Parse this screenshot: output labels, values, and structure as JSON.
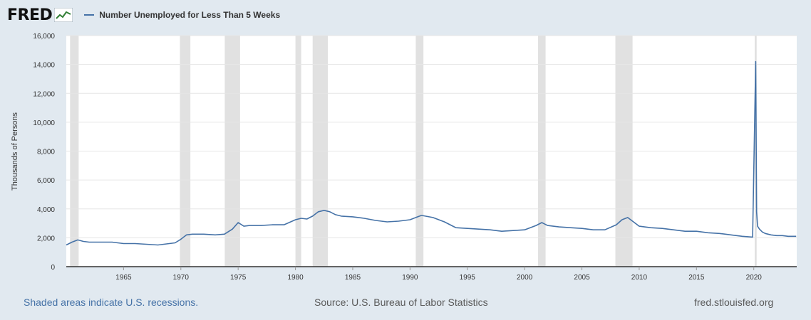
{
  "header": {
    "logo_text": "FRED",
    "series_label": "Number Unemployed for Less Than 5 Weeks",
    "series_color": "#4572a7"
  },
  "footer": {
    "recessions_note": "Shaded areas indicate U.S. recessions.",
    "source": "Source: U.S. Bureau of Labor Statistics",
    "site": "fred.stlouisfed.org"
  },
  "chart_data": {
    "type": "line",
    "title": "",
    "xlabel": "",
    "ylabel": "Thousands of Persons",
    "xlim": [
      1960.0,
      2023.75
    ],
    "ylim": [
      0,
      16000
    ],
    "yticks": [
      0,
      2000,
      4000,
      6000,
      8000,
      10000,
      12000,
      14000,
      16000
    ],
    "ytick_labels": [
      "0",
      "2,000",
      "4,000",
      "6,000",
      "8,000",
      "10,000",
      "12,000",
      "14,000",
      "16,000"
    ],
    "xticks": [
      1965,
      1970,
      1975,
      1980,
      1985,
      1990,
      1995,
      2000,
      2005,
      2010,
      2015,
      2020
    ],
    "grid": true,
    "recessions": [
      [
        1960.33,
        1961.08
      ],
      [
        1969.92,
        1970.83
      ],
      [
        1973.83,
        1975.17
      ],
      [
        1980.0,
        1980.5
      ],
      [
        1981.5,
        1982.83
      ],
      [
        1990.5,
        1991.17
      ],
      [
        2001.17,
        2001.83
      ],
      [
        2007.92,
        2009.42
      ],
      [
        2020.08,
        2020.25
      ]
    ],
    "series": [
      {
        "name": "Number Unemployed for Less Than 5 Weeks",
        "x": [
          1960.0,
          1960.5,
          1961.0,
          1961.5,
          1962.0,
          1963.0,
          1964.0,
          1965.0,
          1966.0,
          1967.0,
          1968.0,
          1969.0,
          1969.5,
          1970.0,
          1970.5,
          1971.0,
          1972.0,
          1973.0,
          1973.8,
          1974.5,
          1975.0,
          1975.5,
          1976.0,
          1977.0,
          1978.0,
          1979.0,
          1980.0,
          1980.5,
          1981.0,
          1981.5,
          1982.0,
          1982.5,
          1983.0,
          1983.5,
          1984.0,
          1985.0,
          1986.0,
          1987.0,
          1988.0,
          1989.0,
          1990.0,
          1990.5,
          1991.0,
          1992.0,
          1993.0,
          1994.0,
          1995.0,
          1996.0,
          1997.0,
          1998.0,
          1999.0,
          2000.0,
          2001.0,
          2001.5,
          2002.0,
          2003.0,
          2004.0,
          2005.0,
          2006.0,
          2007.0,
          2008.0,
          2008.5,
          2009.0,
          2009.5,
          2010.0,
          2011.0,
          2012.0,
          2013.0,
          2014.0,
          2015.0,
          2016.0,
          2017.0,
          2018.0,
          2019.0,
          2019.9,
          2020.17,
          2020.25,
          2020.33,
          2020.5,
          2020.75,
          2021.0,
          2021.5,
          2022.0,
          2022.5,
          2023.0,
          2023.7
        ],
        "y": [
          1500,
          1700,
          1850,
          1750,
          1700,
          1700,
          1700,
          1600,
          1600,
          1550,
          1500,
          1600,
          1650,
          1900,
          2200,
          2250,
          2250,
          2200,
          2250,
          2600,
          3050,
          2800,
          2850,
          2850,
          2900,
          2900,
          3250,
          3350,
          3300,
          3500,
          3800,
          3900,
          3800,
          3600,
          3500,
          3450,
          3350,
          3200,
          3100,
          3150,
          3250,
          3400,
          3550,
          3400,
          3100,
          2700,
          2650,
          2600,
          2550,
          2450,
          2500,
          2550,
          2850,
          3050,
          2850,
          2750,
          2700,
          2650,
          2550,
          2550,
          2900,
          3250,
          3400,
          3100,
          2800,
          2700,
          2650,
          2550,
          2450,
          2450,
          2350,
          2300,
          2200,
          2100,
          2050,
          14200,
          3800,
          2800,
          2600,
          2400,
          2300,
          2200,
          2150,
          2150,
          2100,
          2100
        ]
      }
    ]
  }
}
